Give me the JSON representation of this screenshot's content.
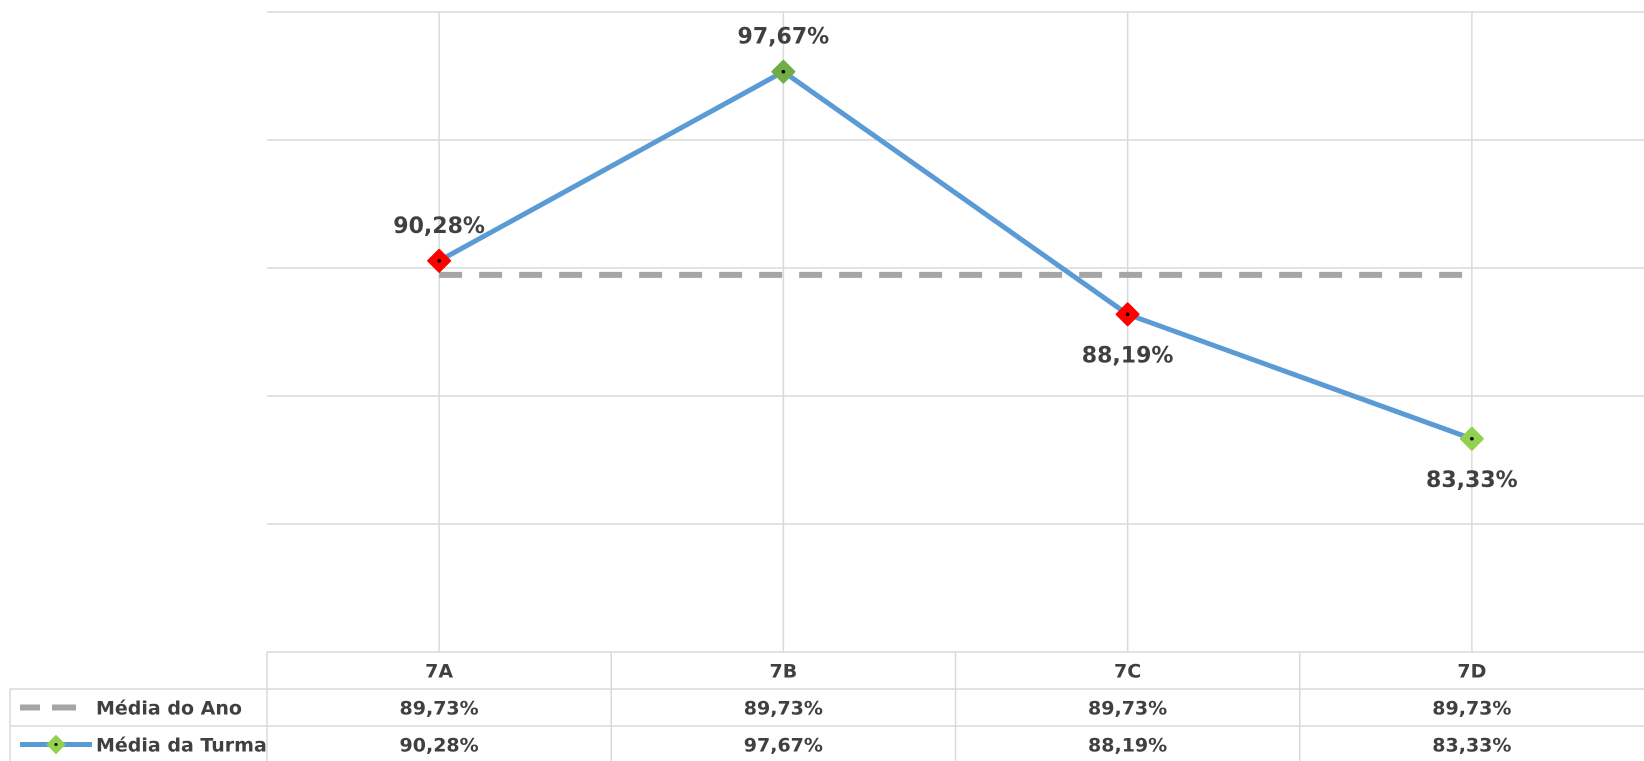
{
  "chart_data": {
    "type": "line",
    "categories": [
      "7A",
      "7B",
      "7C",
      "7D"
    ],
    "series": [
      {
        "name": "Média do Ano",
        "values": [
          89.73,
          89.73,
          89.73,
          89.73
        ],
        "labels": [
          "89,73%",
          "89,73%",
          "89,73%",
          "89,73%"
        ],
        "color": "#A5A5A5",
        "style": "dashed"
      },
      {
        "name": "Média da Turma",
        "values": [
          90.28,
          97.67,
          88.19,
          83.33
        ],
        "labels": [
          "90,28%",
          "97,67%",
          "88,19%",
          "83,33%"
        ],
        "color": "#5B9BD5",
        "marker_colors": [
          "#FF0000",
          "#70AD47",
          "#FF0000",
          "#92D050"
        ],
        "style": "solid"
      }
    ],
    "ylim": [
      75,
      100
    ],
    "grid": true,
    "data_table": true,
    "legend_placement": "data-table-left"
  }
}
